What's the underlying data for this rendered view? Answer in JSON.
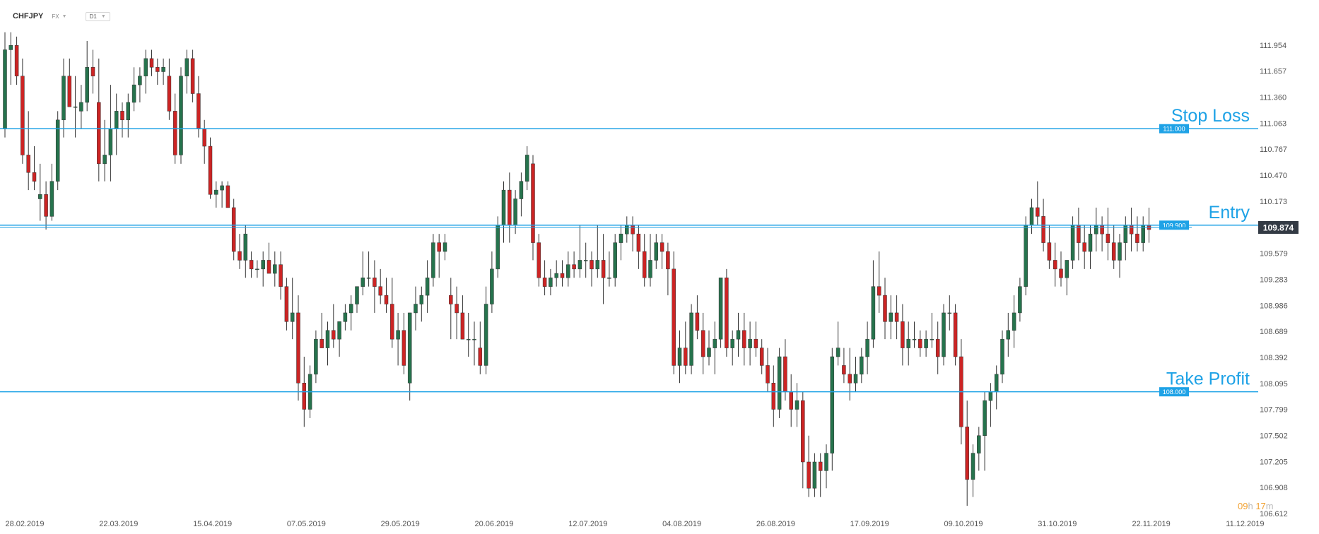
{
  "header": {
    "symbol": "CHFJPY",
    "market": "FX",
    "timeframe": "D1"
  },
  "countdown": {
    "hours": "09",
    "hours_unit": "h",
    "minutes": "17",
    "minutes_unit": "m"
  },
  "colors": {
    "up": "#26734d",
    "down": "#cc2424",
    "wick": "#333333",
    "line": "#1ea2e6",
    "label_bg": "#1ea2e6",
    "price_bg": "#333a44",
    "axis_text": "#555555"
  },
  "chart_data": {
    "type": "candlestick",
    "symbol": "CHFJPY",
    "timeframe": "D1",
    "ylim": [
      106.612,
      112.25
    ],
    "y_ticks": [
      "111.954",
      "111.657",
      "111.360",
      "111.063",
      "110.767",
      "110.470",
      "110.173",
      "109.876",
      "109.579",
      "109.283",
      "108.986",
      "108.689",
      "108.392",
      "108.095",
      "107.799",
      "107.502",
      "107.205",
      "106.908",
      "106.612"
    ],
    "x_ticks": [
      {
        "label": "28.02.2019",
        "index": 0
      },
      {
        "label": "22.03.2019",
        "index": 16
      },
      {
        "label": "15.04.2019",
        "index": 32
      },
      {
        "label": "07.05.2019",
        "index": 48
      },
      {
        "label": "29.05.2019",
        "index": 64
      },
      {
        "label": "20.06.2019",
        "index": 80
      },
      {
        "label": "12.07.2019",
        "index": 96
      },
      {
        "label": "04.08.2019",
        "index": 112
      },
      {
        "label": "26.08.2019",
        "index": 128
      },
      {
        "label": "17.09.2019",
        "index": 144
      },
      {
        "label": "09.10.2019",
        "index": 160
      },
      {
        "label": "31.10.2019",
        "index": 176
      },
      {
        "label": "22.11.2019",
        "index": 192
      },
      {
        "label": "11.12.2019",
        "index": 208
      }
    ],
    "levels": [
      {
        "name": "Stop Loss",
        "value": 111.0,
        "label": "111.000"
      },
      {
        "name": "Entry",
        "value": 109.9,
        "label": "109.900"
      },
      {
        "name": "Take Profit",
        "value": 108.0,
        "label": "108.000"
      }
    ],
    "last_price": {
      "value": 109.874,
      "label": "109.874"
    },
    "ohlc": [
      [
        111.0,
        112.1,
        110.9,
        111.9
      ],
      [
        111.9,
        112.1,
        111.5,
        111.95
      ],
      [
        111.95,
        112.05,
        111.5,
        111.6
      ],
      [
        111.6,
        111.8,
        110.6,
        110.7
      ],
      [
        110.7,
        111.2,
        110.3,
        110.5
      ],
      [
        110.5,
        110.8,
        110.3,
        110.4
      ],
      [
        110.2,
        110.6,
        109.95,
        110.25
      ],
      [
        110.25,
        110.4,
        109.85,
        110.0
      ],
      [
        110.0,
        110.6,
        109.95,
        110.4
      ],
      [
        110.4,
        111.2,
        110.3,
        111.1
      ],
      [
        111.1,
        111.8,
        110.9,
        111.6
      ],
      [
        111.6,
        111.8,
        111.3,
        111.25
      ],
      [
        111.25,
        111.6,
        110.9,
        111.25
      ],
      [
        111.2,
        111.5,
        111.0,
        111.3
      ],
      [
        111.3,
        112.0,
        111.2,
        111.7
      ],
      [
        111.7,
        111.9,
        111.4,
        111.6
      ],
      [
        111.3,
        111.8,
        110.4,
        110.6
      ],
      [
        110.6,
        111.1,
        110.4,
        110.7
      ],
      [
        110.7,
        111.5,
        110.4,
        111.0
      ],
      [
        111.0,
        111.4,
        110.7,
        111.2
      ],
      [
        111.2,
        111.3,
        110.9,
        111.1
      ],
      [
        111.1,
        111.4,
        110.9,
        111.3
      ],
      [
        111.3,
        111.7,
        111.2,
        111.5
      ],
      [
        111.5,
        111.7,
        111.3,
        111.6
      ],
      [
        111.6,
        111.9,
        111.4,
        111.8
      ],
      [
        111.8,
        111.9,
        111.6,
        111.7
      ],
      [
        111.7,
        111.8,
        111.5,
        111.65
      ],
      [
        111.65,
        111.8,
        111.5,
        111.7
      ],
      [
        111.6,
        111.8,
        111.1,
        111.2
      ],
      [
        111.2,
        111.4,
        110.6,
        110.7
      ],
      [
        110.7,
        111.7,
        110.6,
        111.6
      ],
      [
        111.6,
        111.9,
        111.4,
        111.8
      ],
      [
        111.8,
        111.9,
        111.3,
        111.4
      ],
      [
        111.4,
        111.6,
        110.9,
        111.0
      ],
      [
        111.0,
        111.1,
        110.6,
        110.8
      ],
      [
        110.8,
        110.9,
        110.2,
        110.25
      ],
      [
        110.25,
        110.4,
        110.1,
        110.3
      ],
      [
        110.3,
        110.4,
        110.1,
        110.35
      ],
      [
        110.35,
        110.4,
        110.1,
        110.1
      ],
      [
        110.1,
        110.2,
        109.5,
        109.6
      ],
      [
        109.6,
        109.8,
        109.4,
        109.5
      ],
      [
        109.5,
        109.9,
        109.3,
        109.8
      ],
      [
        109.5,
        109.6,
        109.3,
        109.4
      ],
      [
        109.4,
        109.5,
        109.3,
        109.4
      ],
      [
        109.4,
        109.6,
        109.2,
        109.5
      ],
      [
        109.5,
        109.7,
        109.4,
        109.35
      ],
      [
        109.35,
        109.6,
        109.2,
        109.45
      ],
      [
        109.45,
        109.6,
        109.05,
        109.2
      ],
      [
        109.2,
        109.3,
        108.7,
        108.8
      ],
      [
        108.8,
        109.3,
        108.6,
        108.9
      ],
      [
        108.9,
        109.1,
        107.9,
        108.1
      ],
      [
        108.1,
        108.4,
        107.6,
        107.8
      ],
      [
        107.8,
        108.3,
        107.7,
        108.2
      ],
      [
        108.2,
        108.7,
        108.1,
        108.6
      ],
      [
        108.6,
        108.9,
        108.5,
        108.5
      ],
      [
        108.5,
        108.8,
        108.3,
        108.7
      ],
      [
        108.7,
        109.0,
        108.5,
        108.6
      ],
      [
        108.6,
        108.8,
        108.4,
        108.8
      ],
      [
        108.8,
        109.0,
        108.7,
        108.9
      ],
      [
        108.9,
        109.1,
        108.7,
        109.0
      ],
      [
        109.0,
        109.2,
        108.9,
        109.2
      ],
      [
        109.2,
        109.6,
        109.1,
        109.3
      ],
      [
        109.3,
        109.6,
        109.2,
        109.3
      ],
      [
        109.3,
        109.5,
        108.9,
        109.2
      ],
      [
        109.2,
        109.4,
        109.0,
        109.1
      ],
      [
        109.1,
        109.3,
        108.9,
        109.0
      ],
      [
        109.0,
        109.3,
        108.5,
        108.6
      ],
      [
        108.6,
        108.9,
        108.3,
        108.7
      ],
      [
        108.7,
        108.9,
        108.2,
        108.3
      ],
      [
        108.1,
        108.9,
        107.9,
        108.9
      ],
      [
        108.9,
        109.2,
        108.7,
        109.0
      ],
      [
        109.0,
        109.2,
        108.8,
        109.1
      ],
      [
        109.1,
        109.5,
        108.9,
        109.3
      ],
      [
        109.3,
        109.8,
        109.2,
        109.7
      ],
      [
        109.7,
        109.8,
        109.3,
        109.6
      ],
      [
        109.6,
        109.8,
        109.5,
        109.7
      ],
      [
        109.1,
        109.3,
        108.6,
        109.0
      ],
      [
        109.0,
        109.2,
        108.6,
        108.9
      ],
      [
        108.9,
        109.1,
        108.6,
        108.6
      ],
      [
        108.6,
        108.9,
        108.4,
        108.6
      ],
      [
        108.6,
        108.8,
        108.3,
        108.6
      ],
      [
        108.5,
        108.8,
        108.2,
        108.3
      ],
      [
        108.3,
        109.2,
        108.2,
        109.0
      ],
      [
        109.0,
        109.6,
        108.9,
        109.4
      ],
      [
        109.4,
        110.0,
        109.3,
        109.9
      ],
      [
        109.9,
        110.4,
        109.7,
        110.3
      ],
      [
        110.3,
        110.5,
        109.7,
        109.9
      ],
      [
        109.9,
        110.3,
        109.8,
        110.2
      ],
      [
        110.2,
        110.5,
        110.0,
        110.4
      ],
      [
        110.4,
        110.8,
        110.3,
        110.7
      ],
      [
        110.6,
        110.7,
        109.5,
        109.7
      ],
      [
        109.7,
        109.8,
        109.2,
        109.3
      ],
      [
        109.3,
        109.5,
        109.1,
        109.2
      ],
      [
        109.2,
        109.4,
        109.1,
        109.3
      ],
      [
        109.3,
        109.5,
        109.2,
        109.35
      ],
      [
        109.35,
        109.5,
        109.2,
        109.3
      ],
      [
        109.3,
        109.6,
        109.2,
        109.45
      ],
      [
        109.45,
        109.6,
        109.3,
        109.4
      ],
      [
        109.4,
        109.9,
        109.3,
        109.5
      ],
      [
        109.5,
        109.7,
        109.3,
        109.5
      ],
      [
        109.5,
        109.6,
        109.2,
        109.4
      ],
      [
        109.4,
        109.9,
        109.3,
        109.5
      ],
      [
        109.5,
        109.8,
        109.0,
        109.3
      ],
      [
        109.3,
        109.6,
        109.2,
        109.3
      ],
      [
        109.3,
        109.8,
        109.2,
        109.7
      ],
      [
        109.7,
        109.9,
        109.5,
        109.8
      ],
      [
        109.8,
        110.0,
        109.7,
        109.9
      ],
      [
        109.9,
        110.0,
        109.6,
        109.8
      ],
      [
        109.8,
        109.9,
        109.4,
        109.6
      ],
      [
        109.6,
        109.8,
        109.2,
        109.3
      ],
      [
        109.3,
        109.8,
        109.2,
        109.5
      ],
      [
        109.5,
        109.8,
        109.4,
        109.7
      ],
      [
        109.7,
        109.8,
        109.4,
        109.6
      ],
      [
        109.6,
        109.7,
        109.1,
        109.4
      ],
      [
        109.4,
        109.6,
        108.2,
        108.3
      ],
      [
        108.3,
        108.7,
        108.1,
        108.5
      ],
      [
        108.5,
        108.8,
        108.2,
        108.3
      ],
      [
        108.3,
        109.0,
        108.2,
        108.9
      ],
      [
        108.9,
        109.1,
        108.6,
        108.7
      ],
      [
        108.7,
        108.9,
        108.2,
        108.4
      ],
      [
        108.4,
        108.7,
        108.3,
        108.5
      ],
      [
        108.5,
        108.8,
        108.2,
        108.6
      ],
      [
        108.6,
        109.3,
        108.5,
        109.3
      ],
      [
        109.3,
        109.4,
        108.4,
        108.5
      ],
      [
        108.5,
        108.7,
        108.3,
        108.6
      ],
      [
        108.6,
        108.9,
        108.4,
        108.7
      ],
      [
        108.7,
        108.9,
        108.3,
        108.5
      ],
      [
        108.5,
        108.8,
        108.3,
        108.6
      ],
      [
        108.6,
        108.8,
        108.4,
        108.5
      ],
      [
        108.5,
        108.6,
        108.2,
        108.3
      ],
      [
        108.3,
        108.5,
        108.0,
        108.1
      ],
      [
        108.1,
        108.3,
        107.6,
        107.8
      ],
      [
        107.8,
        108.5,
        107.7,
        108.4
      ],
      [
        108.4,
        108.6,
        107.9,
        108.0
      ],
      [
        108.0,
        108.2,
        107.6,
        107.8
      ],
      [
        107.8,
        108.1,
        107.6,
        107.9
      ],
      [
        107.9,
        108.0,
        106.9,
        107.2
      ],
      [
        107.2,
        107.5,
        106.8,
        106.9
      ],
      [
        106.9,
        107.3,
        106.8,
        107.2
      ],
      [
        107.2,
        107.3,
        106.8,
        107.1
      ],
      [
        107.1,
        107.4,
        106.9,
        107.3
      ],
      [
        107.3,
        108.5,
        107.1,
        108.4
      ],
      [
        108.4,
        108.8,
        108.3,
        108.5
      ],
      [
        108.3,
        108.5,
        108.1,
        108.2
      ],
      [
        108.2,
        108.5,
        107.9,
        108.1
      ],
      [
        108.1,
        108.4,
        108.0,
        108.2
      ],
      [
        108.2,
        108.5,
        108.1,
        108.4
      ],
      [
        108.4,
        108.8,
        108.2,
        108.6
      ],
      [
        108.6,
        109.5,
        108.5,
        109.2
      ],
      [
        109.2,
        109.6,
        108.9,
        109.1
      ],
      [
        109.1,
        109.3,
        108.6,
        108.8
      ],
      [
        108.8,
        109.1,
        108.6,
        108.9
      ],
      [
        108.9,
        109.1,
        108.6,
        108.8
      ],
      [
        108.8,
        109.0,
        108.3,
        108.5
      ],
      [
        108.5,
        108.8,
        108.3,
        108.6
      ],
      [
        108.6,
        108.8,
        108.5,
        108.6
      ],
      [
        108.6,
        108.7,
        108.4,
        108.5
      ],
      [
        108.5,
        108.7,
        108.4,
        108.6
      ],
      [
        108.6,
        108.9,
        108.5,
        108.6
      ],
      [
        108.6,
        108.8,
        108.2,
        108.4
      ],
      [
        108.4,
        109.0,
        108.3,
        108.9
      ],
      [
        108.9,
        109.1,
        108.7,
        108.9
      ],
      [
        108.9,
        109.0,
        108.3,
        108.4
      ],
      [
        108.4,
        108.6,
        107.4,
        107.6
      ],
      [
        107.6,
        107.9,
        106.7,
        107.0
      ],
      [
        107.0,
        107.4,
        106.8,
        107.3
      ],
      [
        107.3,
        107.6,
        107.1,
        107.5
      ],
      [
        107.5,
        108.0,
        107.1,
        107.9
      ],
      [
        107.9,
        108.1,
        107.6,
        108.0
      ],
      [
        108.0,
        108.3,
        107.8,
        108.2
      ],
      [
        108.2,
        108.7,
        108.1,
        108.6
      ],
      [
        108.6,
        108.9,
        108.4,
        108.7
      ],
      [
        108.7,
        109.1,
        108.5,
        108.9
      ],
      [
        108.9,
        109.3,
        108.8,
        109.2
      ],
      [
        109.2,
        110.0,
        109.1,
        109.9
      ],
      [
        109.9,
        110.2,
        109.8,
        110.1
      ],
      [
        110.1,
        110.4,
        109.9,
        110.0
      ],
      [
        110.0,
        110.2,
        109.6,
        109.7
      ],
      [
        109.7,
        109.9,
        109.4,
        109.5
      ],
      [
        109.5,
        109.7,
        109.2,
        109.4
      ],
      [
        109.4,
        109.6,
        109.2,
        109.3
      ],
      [
        109.3,
        109.5,
        109.1,
        109.5
      ],
      [
        109.5,
        110.0,
        109.4,
        109.9
      ],
      [
        109.9,
        110.1,
        109.5,
        109.7
      ],
      [
        109.7,
        109.9,
        109.4,
        109.6
      ],
      [
        109.6,
        109.9,
        109.4,
        109.8
      ],
      [
        109.8,
        110.1,
        109.6,
        109.9
      ],
      [
        109.9,
        110.0,
        109.6,
        109.8
      ],
      [
        109.8,
        110.1,
        109.5,
        109.7
      ],
      [
        109.7,
        109.9,
        109.4,
        109.5
      ],
      [
        109.5,
        109.8,
        109.3,
        109.7
      ],
      [
        109.7,
        110.0,
        109.5,
        109.9
      ],
      [
        109.9,
        110.1,
        109.6,
        109.8
      ],
      [
        109.8,
        110.0,
        109.6,
        109.7
      ],
      [
        109.7,
        110.0,
        109.6,
        109.9
      ],
      [
        109.9,
        110.1,
        109.7,
        109.85
      ]
    ]
  }
}
